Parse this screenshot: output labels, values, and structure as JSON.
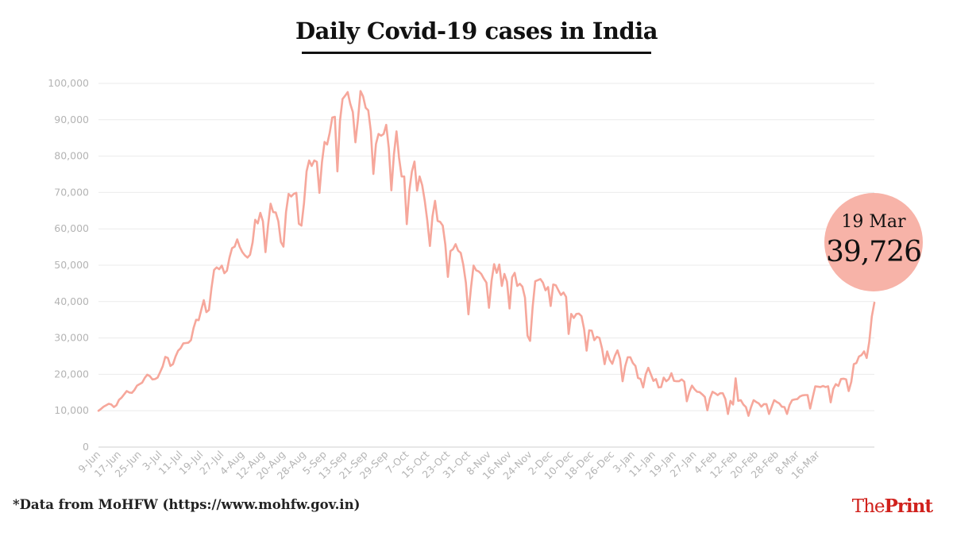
{
  "title": "Daily Covid-19 cases in India",
  "footnote": "*Data from MoHFW (https://www.mohfw.gov.in)",
  "callout": {
    "date": "19 Mar",
    "value": "39,726"
  },
  "brand": {
    "part1": "The",
    "part2": "Print",
    "color": "#d0211c"
  },
  "colors": {
    "line": "#f6a79b",
    "bubble": "#f7b3a8",
    "grid": "#ebebeb",
    "tick_text": "#b4b4b4"
  },
  "chart_data": {
    "type": "line",
    "title": "Daily Covid-19 cases in India",
    "xlabel": "",
    "ylabel": "",
    "ylim": [
      0,
      100000
    ],
    "y_ticks": [
      0,
      10000,
      20000,
      30000,
      40000,
      50000,
      60000,
      70000,
      80000,
      90000,
      100000
    ],
    "y_tick_labels": [
      "0",
      "10,000",
      "20,000",
      "30,000",
      "40,000",
      "50,000",
      "60,000",
      "70,000",
      "80,000",
      "90,000",
      "100,000"
    ],
    "x_tick_labels": [
      "9-Jun",
      "17-Jun",
      "25-Jun",
      "3-Jul",
      "11-Jul",
      "19-Jul",
      "27-Jul",
      "4-Aug",
      "12-Aug",
      "20-Aug",
      "28-Aug",
      "5-Sep",
      "13-Sep",
      "21-Sep",
      "29-Sep",
      "7-Oct",
      "15-Oct",
      "23-Oct",
      "31-Oct",
      "8-Nov",
      "16-Nov",
      "24-Nov",
      "2-Dec",
      "10-Dec",
      "18-Dec",
      "26-Dec",
      "3-Jan",
      "11-Jan",
      "19-Jan",
      "27-Jan",
      "4-Feb",
      "12-Feb",
      "20-Feb",
      "28-Feb",
      "8-Mar",
      "16-Mar"
    ],
    "x_start": "9-Jun",
    "x_end": "19-Mar",
    "grid": true,
    "series": [
      {
        "values": [
          9985,
          10500,
          11100,
          11500,
          11900,
          11700,
          11000,
          11500,
          13000,
          13600,
          14500,
          15400,
          15000,
          14900,
          15700,
          16900,
          17300,
          17700,
          19000,
          19900,
          19500,
          18600,
          18700,
          19100,
          20600,
          22200,
          24800,
          24500,
          22300,
          22800,
          24900,
          26500,
          27200,
          28500,
          28600,
          28700,
          29400,
          32700,
          35000,
          34900,
          37700,
          40400,
          37100,
          37700,
          43800,
          48700,
          49400,
          48900,
          49900,
          47800,
          48500,
          52100,
          54700,
          55100,
          57100,
          55000,
          53600,
          52700,
          52100,
          52900,
          56300,
          62500,
          61500,
          64400,
          62100,
          53600,
          60900,
          66900,
          64600,
          64500,
          62100,
          56400,
          55100,
          64600,
          69600,
          68900,
          69600,
          69900,
          61400,
          60900,
          67100,
          75800,
          78800,
          77300,
          78800,
          78400,
          69900,
          78400,
          83900,
          83200,
          86400,
          90600,
          90800,
          75800,
          89700,
          95700,
          96600,
          97600,
          94400,
          92100,
          83800,
          90100,
          97900,
          96400,
          93300,
          92600,
          86900,
          75100,
          83300,
          86100,
          85600,
          86100,
          88600,
          82200,
          70600,
          80500,
          86800,
          79500,
          74400,
          74400,
          61300,
          70500,
          75800,
          78500,
          70500,
          74400,
          72000,
          67700,
          62200,
          55300,
          63400,
          67700,
          62200,
          61900,
          60900,
          55700,
          46800,
          53900,
          54400,
          55800,
          54000,
          53400,
          50100,
          45200,
          36500,
          43900,
          49900,
          48600,
          48300,
          47600,
          46300,
          45200,
          38300,
          45700,
          50300,
          47900,
          50200,
          44300,
          47600,
          45500,
          38100,
          46700,
          47900,
          44300,
          44900,
          44100,
          41100,
          30600,
          29200,
          38600,
          45600,
          45900,
          46200,
          45200,
          43100,
          44000,
          38800,
          44700,
          44500,
          43100,
          41800,
          42500,
          41300,
          31100,
          36600,
          35500,
          36600,
          36700,
          36000,
          32500,
          26500,
          32100,
          32000,
          29400,
          30300,
          30000,
          27100,
          22800,
          26300,
          24000,
          22900,
          25100,
          26600,
          24300,
          18100,
          22200,
          24700,
          24700,
          23100,
          22300,
          19000,
          18700,
          16400,
          20000,
          21800,
          20000,
          18200,
          18700,
          16400,
          16500,
          19100,
          18100,
          18700,
          20300,
          18200,
          18100,
          18100,
          18600,
          18000,
          12600,
          15200,
          16900,
          15900,
          15200,
          15100,
          14500,
          13800,
          10100,
          13400,
          15200,
          14800,
          14300,
          14800,
          14800,
          13200,
          9100,
          12700,
          11700,
          18900,
          12700,
          12900,
          11700,
          11000,
          8600,
          11000,
          12900,
          12400,
          12000,
          11100,
          11800,
          11800,
          9100,
          11000,
          12900,
          12400,
          12000,
          11100,
          11000,
          9100,
          11600,
          12900,
          13100,
          13200,
          13900,
          14200,
          14300,
          14300,
          10600,
          13700,
          16700,
          16600,
          16500,
          16800,
          16500,
          16700,
          12300,
          16000,
          17300,
          16800,
          18700,
          18800,
          18600,
          15400,
          17900,
          22800,
          23100,
          24900,
          25300,
          26300,
          24500,
          28900,
          35900,
          39700
        ]
      }
    ]
  }
}
